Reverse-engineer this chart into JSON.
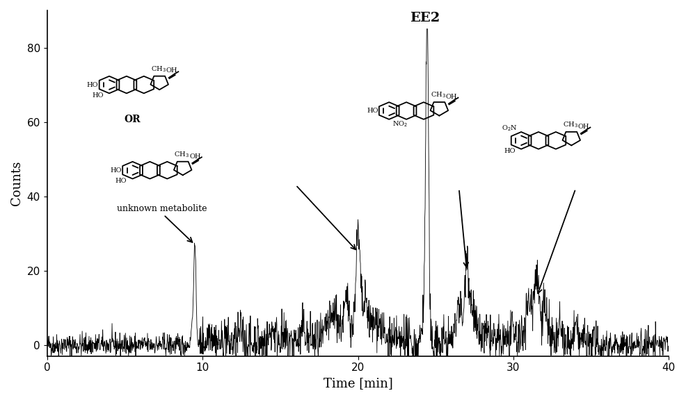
{
  "title": "",
  "xlabel": "Time [min]",
  "ylabel": "Counts",
  "xlim": [
    0,
    40
  ],
  "ylim": [
    -3,
    90
  ],
  "yticks": [
    0,
    20,
    40,
    60,
    80
  ],
  "xticks": [
    0,
    10,
    20,
    30,
    40
  ],
  "background_color": "#ffffff",
  "line_color": "#000000",
  "peak1_time": 9.5,
  "peak1_height": 27,
  "peak2_time": 20.0,
  "peak2_height": 25,
  "peak3_time": 24.5,
  "peak3_height": 82,
  "peak4_time": 26.8,
  "peak4_height": 20,
  "peak5_time": 31.2,
  "peak5_height": 13,
  "noise_start": 9.8,
  "noise_end": 35.0,
  "label_EE2": "EE2",
  "label_unknown": "unknown metabolite",
  "label_OR": "OR"
}
